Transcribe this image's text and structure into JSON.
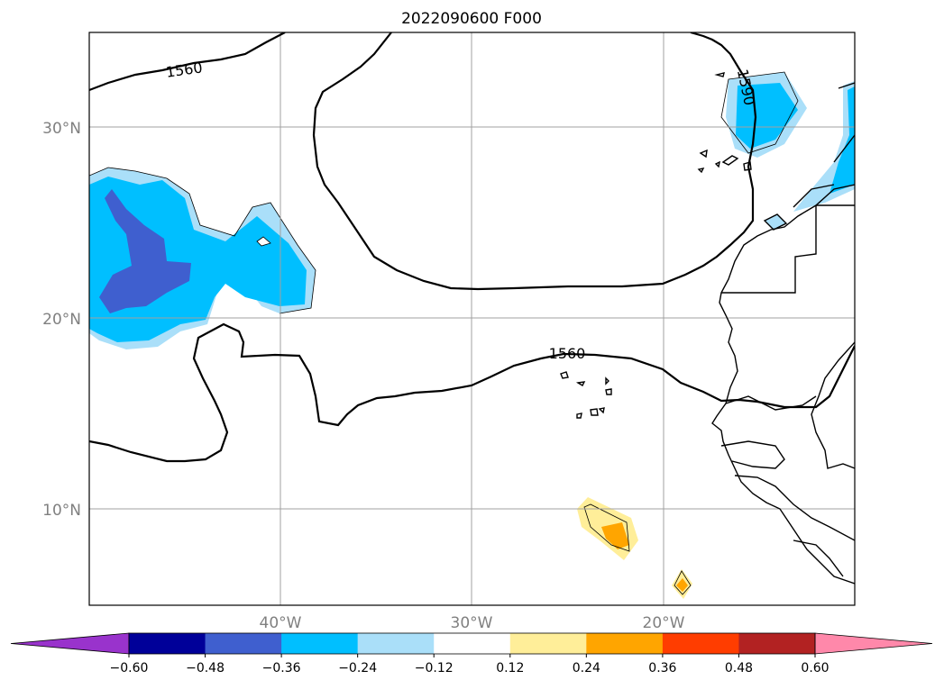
{
  "title": "2022090600 F000",
  "map": {
    "lat_labels": [
      "30°N",
      "20°N",
      "10°N"
    ],
    "lon_labels": [
      "40°W",
      "30°W",
      "20°W"
    ],
    "extent": {
      "lon_min": -50,
      "lon_max": -10,
      "lat_min": 5,
      "lat_max": 35
    },
    "contour_labels": [
      {
        "text": "1560",
        "id": "north-1560"
      },
      {
        "text": "1590",
        "id": "ne-1590"
      },
      {
        "text": "1560",
        "id": "south-1560"
      }
    ],
    "grid": "on"
  },
  "colorbar": {
    "ticks": [
      "−0.60",
      "−0.48",
      "−0.36",
      "−0.24",
      "−0.12",
      "0.12",
      "0.24",
      "0.36",
      "0.48",
      "0.60"
    ],
    "tick_values": [
      -0.6,
      -0.48,
      -0.36,
      -0.24,
      -0.12,
      0.12,
      0.24,
      0.36,
      0.48,
      0.6
    ],
    "colors": [
      "#9933cc",
      "#000099",
      "#3f5fcf",
      "#00bfff",
      "#aadff9",
      "#ffffff",
      "#ffee99",
      "#ffa500",
      "#ff3d00",
      "#b22222",
      "#ff88aa"
    ],
    "extend": "both"
  }
}
